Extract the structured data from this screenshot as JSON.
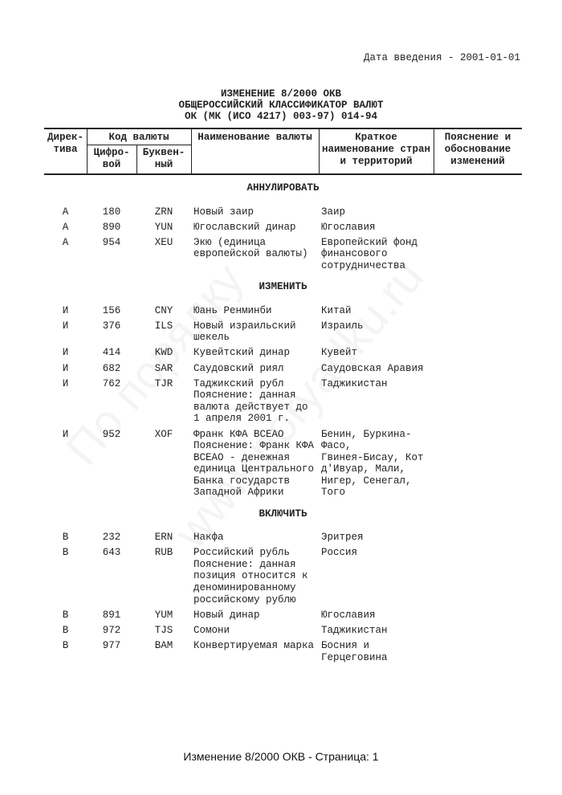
{
  "watermark": [
    "По порядку",
    "www.poryadku.ru"
  ],
  "date": "Дата введения - 2001-01-01",
  "title": [
    "ИЗМЕНЕНИЕ 8/2000 ОКВ",
    "ОБЩЕРОССИЙСКИЙ КЛАССИФИКАТОР ВАЛЮТ",
    "ОК (МК (ИСО 4217) 003-97) 014-94"
  ],
  "header": {
    "directive": "Дирек-\nтива",
    "code": "Код валюты",
    "numeric": "Цифро-\nвой",
    "alpha": "Буквен-\nный",
    "name": "Наименование валюты",
    "country": "Краткое\nнаименование стран\nи территорий",
    "note": "Пояснение и\nобоснование\nизменений"
  },
  "sections": [
    {
      "title": "АННУЛИРОВАТЬ",
      "rows": [
        [
          "А",
          "180",
          "ZRN",
          "Новый заир",
          "Заир",
          ""
        ],
        [
          "А",
          "890",
          "YUN",
          "Югославский динар",
          "Югославия",
          ""
        ],
        [
          "А",
          "954",
          "XEU",
          "Экю (единица\nевропейской валюты)",
          "Европейский фонд\nфинансового\nсотрудничества",
          ""
        ]
      ]
    },
    {
      "title": "ИЗМЕНИТЬ",
      "rows": [
        [
          "И",
          "156",
          "CNY",
          "Юань Ренминби",
          "Китай",
          ""
        ],
        [
          "И",
          "376",
          "ILS",
          "Новый израильский\nшекель",
          "Израиль",
          ""
        ],
        [
          "И",
          "414",
          "KWD",
          "Кувейтский динар",
          "Кувейт",
          ""
        ],
        [
          "И",
          "682",
          "SAR",
          "Саудовский риял",
          "Саудовская Аравия",
          ""
        ],
        [
          "И",
          "762",
          "TJR",
          "Таджикский рубл\nПояснение: данная\nвалюта действует до\n1 апреля 2001 г.",
          "Таджикистан",
          ""
        ],
        [
          "И",
          "952",
          "XOF",
          "Франк КФА ВСЕАО\nПояснение: Франк КФА\nВСЕАО -  денежная\nединица Центрального\nБанка государств\nЗападной Африки",
          "Бенин, Буркина-\nФасо,\nГвинея-Бисау, Кот\nд'Ивуар, Мали,\nНигер, Сенегал,\nТого",
          ""
        ]
      ]
    },
    {
      "title": "ВКЛЮЧИТЬ",
      "rows": [
        [
          "В",
          "232",
          "ERN",
          "Накфа",
          "Эритрея",
          ""
        ],
        [
          "В",
          "643",
          "RUB",
          "Российский рубль\nПояснение: данная\nпозиция относится к\nденоминированному\nроссийскому рублю",
          "Россия",
          ""
        ],
        [
          "В",
          "891",
          "YUM",
          "Новый динар",
          "Югославия",
          ""
        ],
        [
          "В",
          "972",
          "TJS",
          "Сомони",
          "Таджикистан",
          ""
        ],
        [
          "В",
          "977",
          "BAM",
          "Конвертируемая марка",
          "Босния и\nГерцеговина",
          ""
        ]
      ]
    }
  ],
  "footer": "Изменение 8/2000 ОКВ - Страница: 1"
}
